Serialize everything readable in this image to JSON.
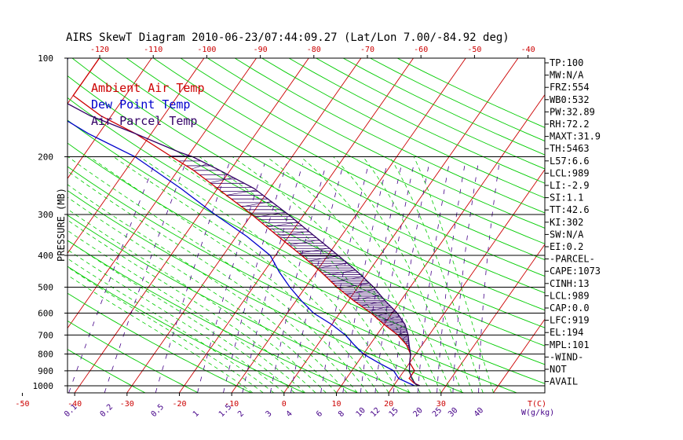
{
  "chart_data": {
    "type": "line",
    "title": "AIRS SkewT Diagram 2010-06-23/07:44:09.27 (Lat/Lon 7.00/-84.92 deg)",
    "ylabel": "PRESSURE (MB)",
    "xlabel": "T(C)",
    "mixing_label": "W(g/kg)",
    "y_scale": "log",
    "ylim": [
      1050,
      100
    ],
    "xlim_bottom": [
      -50,
      40
    ],
    "grid": true,
    "pressure_ticks": [
      100,
      200,
      300,
      400,
      500,
      600,
      700,
      800,
      900,
      1000
    ],
    "bottom_temp_ticks": [
      -50,
      -40,
      -30,
      -20,
      -10,
      0,
      10,
      20,
      30
    ],
    "top_temp_ticks": [
      -120,
      -110,
      -100,
      -90,
      -80,
      -70,
      -60,
      -50,
      -40
    ],
    "mixing_ratio_labels": [
      "0.1",
      "0.2",
      "0.5",
      "1",
      "1.5",
      "2",
      "3",
      "4",
      "6",
      "8",
      "10",
      "12",
      "15",
      "20",
      "25",
      "30",
      "40"
    ],
    "mixing_ratio_values": [
      0.1,
      0.2,
      0.5,
      1,
      1.5,
      2,
      3,
      4,
      6,
      8,
      10,
      12,
      15,
      20,
      25,
      30,
      40
    ],
    "legend": [
      {
        "label": "Ambient Air Temp",
        "color": "#cc0000"
      },
      {
        "label": "Dew Point Temp",
        "color": "#0000cc"
      },
      {
        "label": "Air Parcel Temp",
        "color": "#330066"
      }
    ],
    "colors": {
      "isotherm": "#cc0000",
      "dry_adiabat": "#00cc00",
      "moist_adiabat": "#00cc00",
      "mixing_ratio": "#440088",
      "frame": "#000000",
      "cape_hatch": "#330066"
    },
    "series": [
      {
        "name": "Ambient Air Temp",
        "points": [
          [
            1000,
            25
          ],
          [
            980,
            23.5
          ],
          [
            950,
            22
          ],
          [
            900,
            22
          ],
          [
            850,
            20
          ],
          [
            800,
            19
          ],
          [
            750,
            17
          ],
          [
            700,
            14
          ],
          [
            650,
            10
          ],
          [
            600,
            6
          ],
          [
            550,
            1
          ],
          [
            500,
            -4
          ],
          [
            450,
            -9
          ],
          [
            400,
            -15
          ],
          [
            350,
            -22
          ],
          [
            300,
            -30
          ],
          [
            250,
            -40
          ],
          [
            220,
            -47
          ],
          [
            200,
            -53
          ],
          [
            170,
            -63
          ],
          [
            150,
            -72
          ],
          [
            130,
            -80
          ],
          [
            110,
            -80
          ],
          [
            100,
            -80
          ]
        ]
      },
      {
        "name": "Dew Point Temp",
        "points": [
          [
            1000,
            24
          ],
          [
            950,
            20
          ],
          [
            900,
            18
          ],
          [
            850,
            14
          ],
          [
            800,
            10
          ],
          [
            750,
            7
          ],
          [
            700,
            4
          ],
          [
            650,
            0
          ],
          [
            600,
            -5
          ],
          [
            550,
            -9
          ],
          [
            500,
            -13
          ],
          [
            450,
            -17
          ],
          [
            400,
            -21
          ],
          [
            350,
            -28
          ],
          [
            300,
            -37
          ],
          [
            250,
            -47
          ],
          [
            200,
            -60
          ],
          [
            170,
            -72
          ],
          [
            150,
            -80
          ],
          [
            130,
            -85
          ],
          [
            110,
            -85
          ],
          [
            100,
            -86
          ]
        ]
      },
      {
        "name": "Air Parcel Temp",
        "points": [
          [
            1000,
            25
          ],
          [
            989,
            24
          ],
          [
            950,
            22.5
          ],
          [
            900,
            21
          ],
          [
            850,
            20
          ],
          [
            800,
            19
          ],
          [
            750,
            17.5
          ],
          [
            700,
            16
          ],
          [
            650,
            14
          ],
          [
            600,
            11
          ],
          [
            550,
            7
          ],
          [
            500,
            3
          ],
          [
            450,
            -2
          ],
          [
            400,
            -8
          ],
          [
            350,
            -15
          ],
          [
            300,
            -23
          ],
          [
            250,
            -33
          ],
          [
            220,
            -42
          ],
          [
            200,
            -49
          ],
          [
            194,
            -52
          ],
          [
            170,
            -63
          ],
          [
            150,
            -74
          ],
          [
            130,
            -84
          ],
          [
            115,
            -92
          ]
        ]
      }
    ],
    "stats": [
      "TP:100",
      "MW:N/A",
      "FRZ:554",
      "WB0:532",
      "PW:32.89",
      "RH:72.2",
      "MAXT:31.9",
      "TH:5463",
      "L57:6.6",
      "LCL:989",
      "LI:-2.9",
      "SI:1.1",
      "TT:42.6",
      "KI:302",
      "SW:N/A",
      "EI:0.2",
      "-PARCEL-",
      "CAPE:1073",
      "CINH:13",
      "LCL:989",
      "CAP:0.0",
      "LFC:919",
      "EL:194",
      "MPL:101",
      "-WIND-",
      "NOT",
      "AVAIL"
    ]
  }
}
